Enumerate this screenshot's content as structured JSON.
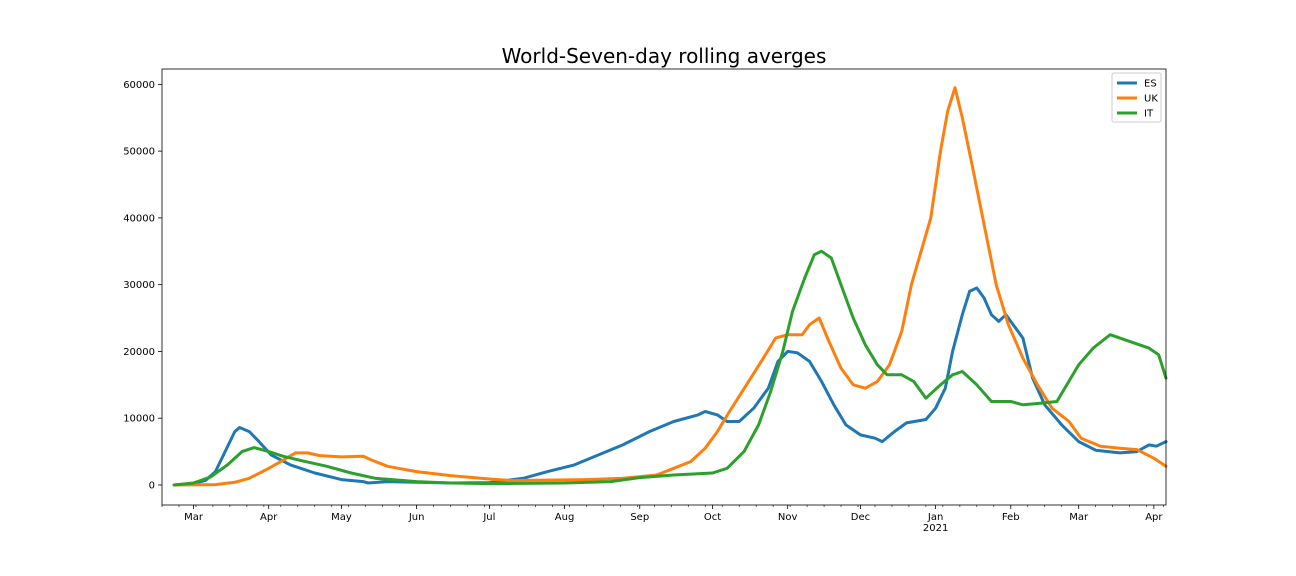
{
  "chart_data": {
    "type": "line",
    "title": "World-Seven-day rolling averges",
    "xlabel": "",
    "ylabel": "",
    "ylim": [
      -3000,
      62300
    ],
    "xlim": [
      "2020-02-17",
      "2021-04-06"
    ],
    "grid": false,
    "legend_position": "top-right",
    "y_ticks": [
      0,
      10000,
      20000,
      30000,
      40000,
      50000,
      60000
    ],
    "y_tick_labels": [
      "0",
      "10000",
      "20000",
      "30000",
      "40000",
      "50000",
      "60000"
    ],
    "x_ticks": [
      {
        "date": "2020-03-01",
        "label": "Mar",
        "sublabel": ""
      },
      {
        "date": "2020-04-01",
        "label": "Apr",
        "sublabel": ""
      },
      {
        "date": "2020-05-01",
        "label": "May",
        "sublabel": ""
      },
      {
        "date": "2020-06-01",
        "label": "Jun",
        "sublabel": ""
      },
      {
        "date": "2020-07-01",
        "label": "Jul",
        "sublabel": ""
      },
      {
        "date": "2020-08-01",
        "label": "Aug",
        "sublabel": ""
      },
      {
        "date": "2020-09-01",
        "label": "Sep",
        "sublabel": ""
      },
      {
        "date": "2020-10-01",
        "label": "Oct",
        "sublabel": ""
      },
      {
        "date": "2020-11-01",
        "label": "Nov",
        "sublabel": ""
      },
      {
        "date": "2020-12-01",
        "label": "Dec",
        "sublabel": ""
      },
      {
        "date": "2021-01-01",
        "label": "Jan",
        "sublabel": "2021"
      },
      {
        "date": "2021-02-01",
        "label": "Feb",
        "sublabel": ""
      },
      {
        "date": "2021-03-01",
        "label": "Mar",
        "sublabel": ""
      },
      {
        "date": "2021-04-01",
        "label": "Apr",
        "sublabel": ""
      }
    ],
    "series": [
      {
        "name": "ES",
        "color": "#1f77b4",
        "points": [
          [
            "2020-02-22",
            0
          ],
          [
            "2020-03-01",
            200
          ],
          [
            "2020-03-06",
            700
          ],
          [
            "2020-03-10",
            2000
          ],
          [
            "2020-03-14",
            5000
          ],
          [
            "2020-03-18",
            8000
          ],
          [
            "2020-03-20",
            8600
          ],
          [
            "2020-03-24",
            8000
          ],
          [
            "2020-03-28",
            6500
          ],
          [
            "2020-04-02",
            4500
          ],
          [
            "2020-04-10",
            3000
          ],
          [
            "2020-04-20",
            1800
          ],
          [
            "2020-05-01",
            800
          ],
          [
            "2020-05-10",
            500
          ],
          [
            "2020-05-12",
            300
          ],
          [
            "2020-05-20",
            500
          ],
          [
            "2020-06-01",
            400
          ],
          [
            "2020-06-15",
            300
          ],
          [
            "2020-07-01",
            350
          ],
          [
            "2020-07-15",
            1000
          ],
          [
            "2020-07-25",
            2000
          ],
          [
            "2020-08-05",
            3000
          ],
          [
            "2020-08-15",
            4500
          ],
          [
            "2020-08-25",
            6000
          ],
          [
            "2020-09-05",
            8000
          ],
          [
            "2020-09-15",
            9500
          ],
          [
            "2020-09-25",
            10500
          ],
          [
            "2020-09-28",
            11000
          ],
          [
            "2020-10-03",
            10500
          ],
          [
            "2020-10-07",
            9500
          ],
          [
            "2020-10-12",
            9500
          ],
          [
            "2020-10-18",
            11500
          ],
          [
            "2020-10-24",
            14500
          ],
          [
            "2020-10-28",
            18500
          ],
          [
            "2020-11-01",
            20000
          ],
          [
            "2020-11-05",
            19800
          ],
          [
            "2020-11-10",
            18500
          ],
          [
            "2020-11-15",
            15500
          ],
          [
            "2020-11-20",
            12000
          ],
          [
            "2020-11-25",
            9000
          ],
          [
            "2020-12-01",
            7500
          ],
          [
            "2020-12-07",
            7000
          ],
          [
            "2020-12-10",
            6500
          ],
          [
            "2020-12-15",
            8000
          ],
          [
            "2020-12-20",
            9300
          ],
          [
            "2020-12-28",
            9800
          ],
          [
            "2021-01-01",
            11500
          ],
          [
            "2021-01-05",
            14500
          ],
          [
            "2021-01-08",
            20000
          ],
          [
            "2021-01-12",
            25500
          ],
          [
            "2021-01-15",
            29000
          ],
          [
            "2021-01-18",
            29500
          ],
          [
            "2021-01-21",
            28000
          ],
          [
            "2021-01-24",
            25500
          ],
          [
            "2021-01-27",
            24500
          ],
          [
            "2021-01-30",
            25500
          ],
          [
            "2021-02-02",
            24000
          ],
          [
            "2021-02-06",
            22000
          ],
          [
            "2021-02-10",
            16000
          ],
          [
            "2021-02-15",
            12000
          ],
          [
            "2021-02-22",
            9000
          ],
          [
            "2021-03-01",
            6500
          ],
          [
            "2021-03-08",
            5200
          ],
          [
            "2021-03-18",
            4800
          ],
          [
            "2021-03-25",
            5000
          ],
          [
            "2021-03-30",
            6000
          ],
          [
            "2021-04-02",
            5800
          ],
          [
            "2021-04-06",
            6500
          ]
        ]
      },
      {
        "name": "UK",
        "color": "#ff7f0e",
        "points": [
          [
            "2020-02-22",
            0
          ],
          [
            "2020-03-10",
            50
          ],
          [
            "2020-03-18",
            400
          ],
          [
            "2020-03-24",
            1000
          ],
          [
            "2020-04-01",
            2500
          ],
          [
            "2020-04-06",
            3500
          ],
          [
            "2020-04-12",
            4800
          ],
          [
            "2020-04-17",
            4800
          ],
          [
            "2020-04-22",
            4400
          ],
          [
            "2020-05-01",
            4200
          ],
          [
            "2020-05-10",
            4300
          ],
          [
            "2020-05-13",
            3800
          ],
          [
            "2020-05-20",
            2800
          ],
          [
            "2020-06-01",
            2000
          ],
          [
            "2020-06-15",
            1400
          ],
          [
            "2020-07-01",
            900
          ],
          [
            "2020-07-10",
            650
          ],
          [
            "2020-07-20",
            700
          ],
          [
            "2020-08-10",
            800
          ],
          [
            "2020-08-25",
            1000
          ],
          [
            "2020-09-08",
            1500
          ],
          [
            "2020-09-15",
            2500
          ],
          [
            "2020-09-22",
            3500
          ],
          [
            "2020-09-28",
            5500
          ],
          [
            "2020-10-03",
            8000
          ],
          [
            "2020-10-08",
            11000
          ],
          [
            "2020-10-15",
            15000
          ],
          [
            "2020-10-22",
            19000
          ],
          [
            "2020-10-27",
            22000
          ],
          [
            "2020-11-01",
            22500
          ],
          [
            "2020-11-07",
            22500
          ],
          [
            "2020-11-10",
            24000
          ],
          [
            "2020-11-14",
            25000
          ],
          [
            "2020-11-18",
            21500
          ],
          [
            "2020-11-23",
            17500
          ],
          [
            "2020-11-28",
            15000
          ],
          [
            "2020-12-03",
            14500
          ],
          [
            "2020-12-08",
            15500
          ],
          [
            "2020-12-13",
            18000
          ],
          [
            "2020-12-18",
            23000
          ],
          [
            "2020-12-22",
            30000
          ],
          [
            "2020-12-26",
            35000
          ],
          [
            "2020-12-30",
            40000
          ],
          [
            "2021-01-03",
            50000
          ],
          [
            "2021-01-06",
            56000
          ],
          [
            "2021-01-09",
            59500
          ],
          [
            "2021-01-12",
            55000
          ],
          [
            "2021-01-16",
            48000
          ],
          [
            "2021-01-21",
            39000
          ],
          [
            "2021-01-26",
            30000
          ],
          [
            "2021-01-31",
            24000
          ],
          [
            "2021-02-06",
            19000
          ],
          [
            "2021-02-12",
            15000
          ],
          [
            "2021-02-18",
            11500
          ],
          [
            "2021-02-25",
            9500
          ],
          [
            "2021-03-02",
            7000
          ],
          [
            "2021-03-10",
            5800
          ],
          [
            "2021-03-18",
            5500
          ],
          [
            "2021-03-25",
            5300
          ],
          [
            "2021-04-01",
            4000
          ],
          [
            "2021-04-06",
            2800
          ]
        ]
      },
      {
        "name": "IT",
        "color": "#2ca02c",
        "points": [
          [
            "2020-02-22",
            0
          ],
          [
            "2020-03-01",
            300
          ],
          [
            "2020-03-08",
            1200
          ],
          [
            "2020-03-15",
            3000
          ],
          [
            "2020-03-21",
            5000
          ],
          [
            "2020-03-26",
            5600
          ],
          [
            "2020-04-01",
            5000
          ],
          [
            "2020-04-07",
            4300
          ],
          [
            "2020-04-15",
            3600
          ],
          [
            "2020-04-25",
            2800
          ],
          [
            "2020-05-05",
            1800
          ],
          [
            "2020-05-15",
            1000
          ],
          [
            "2020-06-01",
            500
          ],
          [
            "2020-06-15",
            300
          ],
          [
            "2020-07-01",
            200
          ],
          [
            "2020-08-01",
            300
          ],
          [
            "2020-08-20",
            500
          ],
          [
            "2020-09-01",
            1100
          ],
          [
            "2020-09-15",
            1500
          ],
          [
            "2020-10-01",
            1800
          ],
          [
            "2020-10-07",
            2500
          ],
          [
            "2020-10-14",
            5000
          ],
          [
            "2020-10-20",
            9000
          ],
          [
            "2020-10-25",
            14000
          ],
          [
            "2020-10-30",
            20000
          ],
          [
            "2020-11-03",
            26000
          ],
          [
            "2020-11-08",
            31000
          ],
          [
            "2020-11-12",
            34500
          ],
          [
            "2020-11-15",
            35000
          ],
          [
            "2020-11-19",
            34000
          ],
          [
            "2020-11-23",
            30000
          ],
          [
            "2020-11-28",
            25000
          ],
          [
            "2020-12-03",
            21000
          ],
          [
            "2020-12-08",
            18000
          ],
          [
            "2020-12-12",
            16500
          ],
          [
            "2020-12-18",
            16500
          ],
          [
            "2020-12-23",
            15500
          ],
          [
            "2020-12-28",
            13000
          ],
          [
            "2021-01-03",
            15000
          ],
          [
            "2021-01-08",
            16500
          ],
          [
            "2021-01-12",
            17000
          ],
          [
            "2021-01-18",
            15000
          ],
          [
            "2021-01-24",
            12500
          ],
          [
            "2021-02-01",
            12500
          ],
          [
            "2021-02-06",
            12000
          ],
          [
            "2021-02-12",
            12200
          ],
          [
            "2021-02-20",
            12500
          ],
          [
            "2021-03-01",
            18000
          ],
          [
            "2021-03-07",
            20500
          ],
          [
            "2021-03-14",
            22500
          ],
          [
            "2021-03-22",
            21500
          ],
          [
            "2021-03-30",
            20500
          ],
          [
            "2021-04-03",
            19500
          ],
          [
            "2021-04-06",
            16000
          ]
        ]
      }
    ]
  }
}
